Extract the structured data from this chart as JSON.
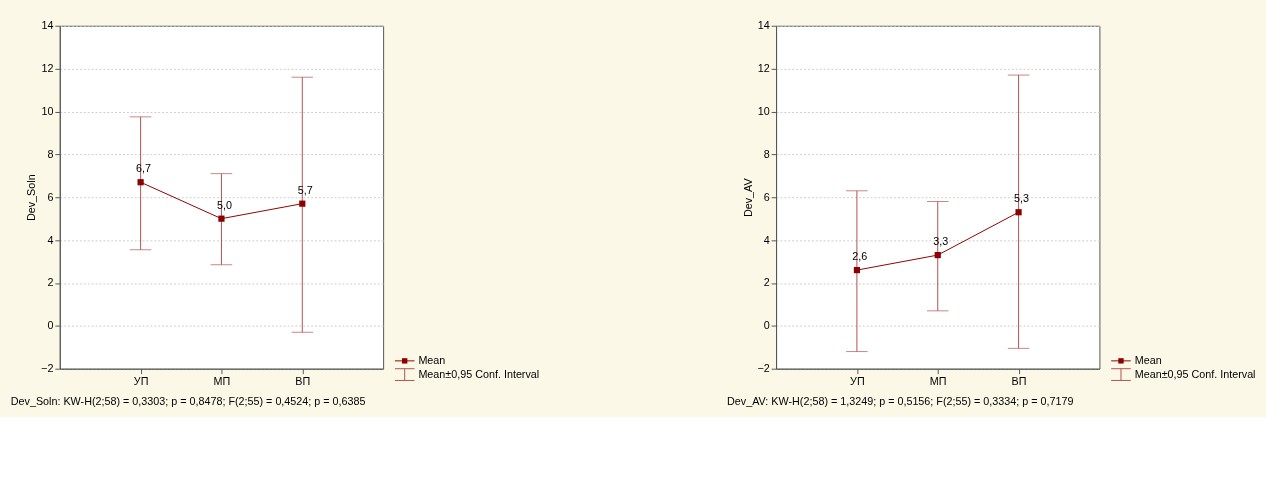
{
  "chart_data": [
    {
      "type": "line",
      "ylabel": "Dev_Soln",
      "categories": [
        "УП",
        "МП",
        "ВП"
      ],
      "series": [
        {
          "name": "Mean",
          "color": "#8b0000",
          "values": [
            6.7,
            5.0,
            5.7
          ],
          "errors": [
            [
              3.55,
              9.75
            ],
            [
              2.85,
              7.1
            ],
            [
              -0.3,
              11.6
            ]
          ],
          "value_labels": [
            "6,7",
            "5,0",
            "5,7"
          ]
        }
      ],
      "ylim": [
        -2,
        14
      ],
      "yticks": [
        -2,
        0,
        2,
        4,
        6,
        8,
        10,
        12,
        14
      ],
      "grid": "y",
      "marker": "square",
      "legend": "bottom right",
      "annotations": [
        "Mean±0,95 Conf. Interval",
        "Dev_Soln:  KW-H(2;58) = 0,3303; p = 0,8478;  F(2;55) = 0,4524; p = 0,6385"
      ]
    },
    {
      "type": "line",
      "ylabel": "Dev_AV",
      "categories": [
        "УП",
        "МП",
        "ВП"
      ],
      "series": [
        {
          "name": "Mean",
          "color": "#8b0000",
          "values": [
            2.6,
            3.3,
            5.3
          ],
          "errors": [
            [
              -1.2,
              6.3
            ],
            [
              0.7,
              5.8
            ],
            [
              -1.05,
              11.7
            ]
          ],
          "value_labels": [
            "2,6",
            "3,3",
            "5,3"
          ]
        }
      ],
      "ylim": [
        -2,
        14
      ],
      "yticks": [
        -2,
        0,
        2,
        4,
        6,
        8,
        10,
        12,
        14
      ],
      "grid": "y",
      "marker": "square",
      "legend": "bottom right",
      "annotations": [
        "Mean±0,95 Conf. Interval",
        "Dev_AV:  KW-H(2;58) = 1,3249; p = 0,5156;  F(2;55) = 0,3334; p = 0,7179"
      ]
    }
  ]
}
